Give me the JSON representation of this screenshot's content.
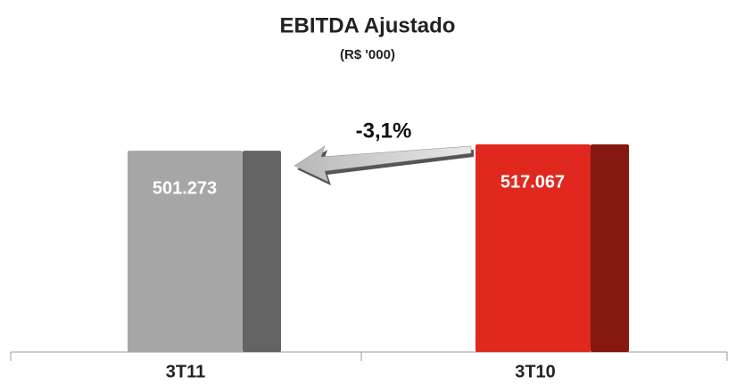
{
  "chart_data": {
    "type": "bar",
    "title": "EBITDA Ajustado",
    "subtitle": "(R$ '000)",
    "categories": [
      "3T11",
      "3T10"
    ],
    "values": [
      501273,
      517067
    ],
    "value_labels": [
      "501.273",
      "517.067"
    ],
    "colors": [
      "#a6a6a6",
      "#e0281e"
    ],
    "annotation": "-3,1%"
  }
}
